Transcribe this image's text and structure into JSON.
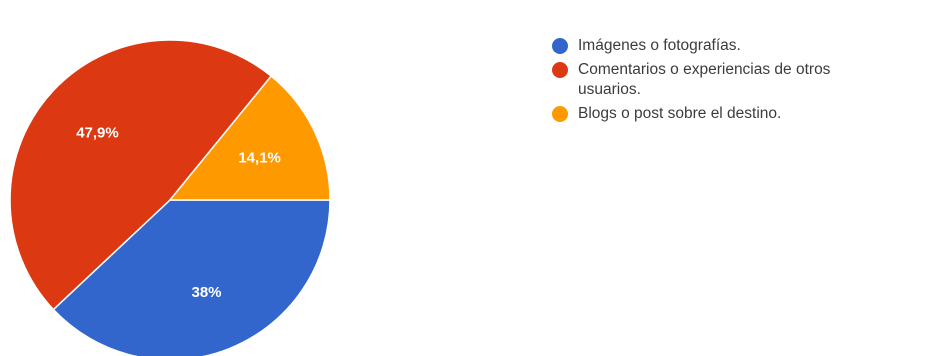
{
  "chart_data": {
    "type": "pie",
    "categories": [
      "Imágenes o fotografías.",
      "Comentarios o experiencias de otros usuarios.",
      "Blogs o post sobre el destino."
    ],
    "values": [
      38,
      47.9,
      14.1
    ],
    "value_labels": [
      "38%",
      "47,9%",
      "14,1%"
    ],
    "colors": [
      "#3366cc",
      "#dc3912",
      "#ff9900"
    ],
    "start_angle_deg": 90,
    "direction": "clockwise",
    "legend_position": "right",
    "title": ""
  },
  "legend": {
    "items": [
      {
        "label_line1": "Imágenes o fotografías.",
        "label_line2": "",
        "color": "#3366cc"
      },
      {
        "label_line1": "Comentarios o experiencias de otros",
        "label_line2": "usuarios.",
        "color": "#dc3912"
      },
      {
        "label_line1": "Blogs o post sobre el destino.",
        "label_line2": "",
        "color": "#ff9900"
      }
    ]
  }
}
